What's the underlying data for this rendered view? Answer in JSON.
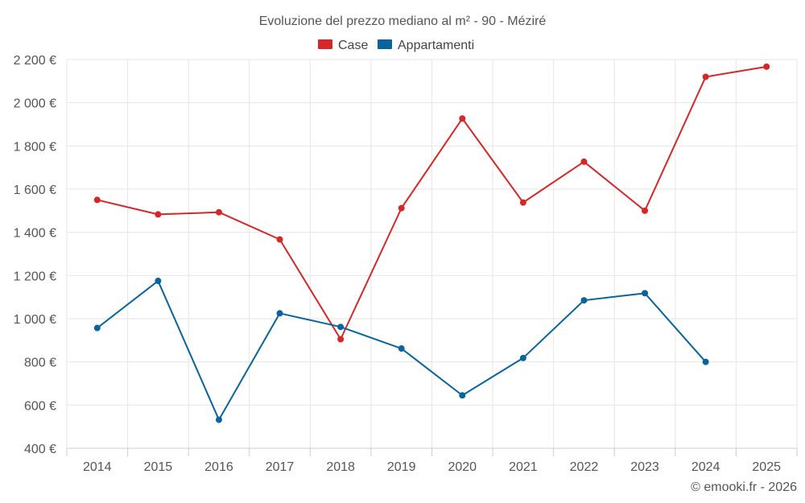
{
  "chart_data": {
    "type": "line",
    "title": "Evoluzione del prezzo mediano al m² - 90 - Méziré",
    "categories": [
      "2014",
      "2015",
      "2016",
      "2017",
      "2018",
      "2019",
      "2020",
      "2021",
      "2022",
      "2023",
      "2024",
      "2025"
    ],
    "ylim": [
      400,
      2200
    ],
    "yticks": [
      400,
      600,
      800,
      1000,
      1200,
      1400,
      1600,
      1800,
      2000,
      2200
    ],
    "ytick_labels": [
      "400 €",
      "600 €",
      "800 €",
      "1 000 €",
      "1 200 €",
      "1 400 €",
      "1 600 €",
      "1 800 €",
      "2 000 €",
      "2 200 €"
    ],
    "grid": true,
    "legend_position": "top-center",
    "series": [
      {
        "name": "Case",
        "color": "#d62728",
        "values": [
          1550,
          1483,
          1493,
          1367,
          905,
          1512,
          1927,
          1538,
          1727,
          1500,
          2120,
          2167
        ]
      },
      {
        "name": "Appartamenti",
        "color": "#08649c",
        "values": [
          957,
          1175,
          532,
          1025,
          962,
          862,
          645,
          818,
          1085,
          1118,
          800,
          null
        ]
      }
    ],
    "credit": "© emooki.fr - 2026"
  }
}
